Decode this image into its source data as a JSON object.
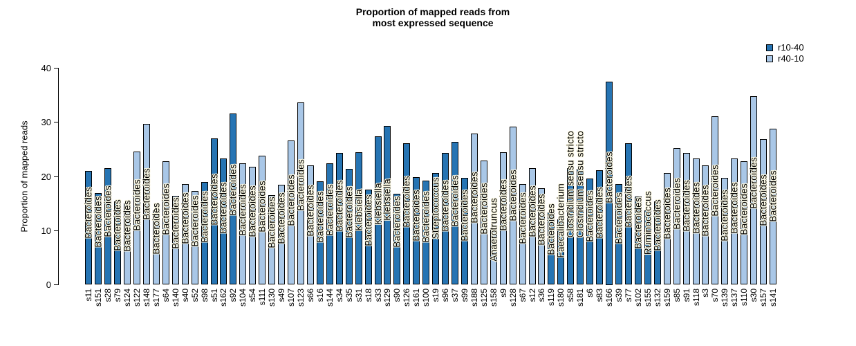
{
  "title": {
    "line1": "Proportion of mapped reads from",
    "line2": "most expressed sequence"
  },
  "y_axis": {
    "label": "Proportion of mapped reads",
    "ticks": [
      0,
      10,
      20,
      30,
      40
    ],
    "min": 0,
    "max": 40
  },
  "legend": [
    {
      "label": "r10-40",
      "color": "#2674B3"
    },
    {
      "label": "r40-10",
      "color": "#A9C7E7"
    }
  ],
  "colors": {
    "dark_series": "#2674B3",
    "light_series": "#A9C7E7",
    "bar_border": "#000000",
    "label_halo": "#fcf9e4",
    "background": "#ffffff"
  },
  "chart_data": {
    "type": "bar",
    "title": "Proportion of mapped reads from most expressed sequence",
    "xlabel": "",
    "ylabel": "Proportion of mapped reads",
    "ylim": [
      0,
      40
    ],
    "grid": false,
    "legend_position": "top-right",
    "series_legend": [
      "r10-40",
      "r40-10"
    ],
    "bars": [
      {
        "sample": "s11",
        "group": "r10-40",
        "genus": "Bacteroides",
        "value": 21.0
      },
      {
        "sample": "s151",
        "group": "r10-40",
        "genus": "Bacteroides",
        "value": 16.9
      },
      {
        "sample": "s28",
        "group": "r10-40",
        "genus": "Bacteroides",
        "value": 21.6
      },
      {
        "sample": "s79",
        "group": "r10-40",
        "genus": "Bacteroides",
        "value": 15.4
      },
      {
        "sample": "s124",
        "group": "r40-10",
        "genus": "Bacteroides",
        "value": 15.0
      },
      {
        "sample": "s122",
        "group": "r40-10",
        "genus": "Bacteroides",
        "value": 24.6
      },
      {
        "sample": "s148",
        "group": "r40-10",
        "genus": "Bacteroides",
        "value": 29.7
      },
      {
        "sample": "s177",
        "group": "r40-10",
        "genus": "Bacteroides",
        "value": 13.8
      },
      {
        "sample": "s64",
        "group": "r40-10",
        "genus": "Bacteroides",
        "value": 22.8
      },
      {
        "sample": "s140",
        "group": "r40-10",
        "genus": "Bacteroides",
        "value": 16.4
      },
      {
        "sample": "s40",
        "group": "r40-10",
        "genus": "Bacteroides",
        "value": 18.6
      },
      {
        "sample": "s52",
        "group": "r40-10",
        "genus": "Bacteroides",
        "value": 17.3
      },
      {
        "sample": "s98",
        "group": "r10-40",
        "genus": "Bacteroides",
        "value": 19.0
      },
      {
        "sample": "s51",
        "group": "r10-40",
        "genus": "Bacteroides",
        "value": 27.1
      },
      {
        "sample": "s162",
        "group": "r10-40",
        "genus": "Bacteroides",
        "value": 23.3
      },
      {
        "sample": "s92",
        "group": "r10-40",
        "genus": "Bacteroides",
        "value": 31.7
      },
      {
        "sample": "s104",
        "group": "r40-10",
        "genus": "Bacteroides",
        "value": 22.4
      },
      {
        "sample": "s54",
        "group": "r40-10",
        "genus": "Bacteroides",
        "value": 21.8
      },
      {
        "sample": "s111",
        "group": "r40-10",
        "genus": "Bacteroides",
        "value": 23.8
      },
      {
        "sample": "s130",
        "group": "r40-10",
        "genus": "Bacteroides",
        "value": 16.6
      },
      {
        "sample": "s49",
        "group": "r40-10",
        "genus": "Bacteroides",
        "value": 18.5
      },
      {
        "sample": "s107",
        "group": "r40-10",
        "genus": "Bacteroides",
        "value": 26.7
      },
      {
        "sample": "s123",
        "group": "r40-10",
        "genus": "Bacteroides",
        "value": 33.7
      },
      {
        "sample": "s66",
        "group": "r40-10",
        "genus": "Bacteroides",
        "value": 22.0
      },
      {
        "sample": "s16",
        "group": "r10-40",
        "genus": "Bacteroides",
        "value": 19.1
      },
      {
        "sample": "s144",
        "group": "r10-40",
        "genus": "Bacteroides",
        "value": 22.4
      },
      {
        "sample": "s34",
        "group": "r10-40",
        "genus": "Bacteroides",
        "value": 24.4
      },
      {
        "sample": "s35",
        "group": "r10-40",
        "genus": "Bacteroides",
        "value": 21.4
      },
      {
        "sample": "s31",
        "group": "r10-40",
        "genus": "Klebsiella",
        "value": 24.5
      },
      {
        "sample": "s18",
        "group": "r10-40",
        "genus": "Bacteroides",
        "value": 17.6
      },
      {
        "sample": "s33",
        "group": "r10-40",
        "genus": "Klebsiella",
        "value": 27.4
      },
      {
        "sample": "s129",
        "group": "r10-40",
        "genus": "Klebsiella",
        "value": 29.4
      },
      {
        "sample": "s90",
        "group": "r10-40",
        "genus": "Bacteroides",
        "value": 16.8
      },
      {
        "sample": "s126",
        "group": "r10-40",
        "genus": "Bacteroides",
        "value": 26.1
      },
      {
        "sample": "s161",
        "group": "r10-40",
        "genus": "Bacteroides",
        "value": 19.9
      },
      {
        "sample": "s100",
        "group": "r10-40",
        "genus": "Bacteroides",
        "value": 19.2
      },
      {
        "sample": "s19",
        "group": "r10-40",
        "genus": "Streptococcus",
        "value": 20.7
      },
      {
        "sample": "s96",
        "group": "r10-40",
        "genus": "Bacteroides",
        "value": 24.4
      },
      {
        "sample": "s37",
        "group": "r10-40",
        "genus": "Bacteroides",
        "value": 26.4
      },
      {
        "sample": "s99",
        "group": "r10-40",
        "genus": "Bacteroides",
        "value": 19.7
      },
      {
        "sample": "s188",
        "group": "r40-10",
        "genus": "Bacteroides",
        "value": 28.0
      },
      {
        "sample": "s125",
        "group": "r40-10",
        "genus": "Bacteroides",
        "value": 22.9
      },
      {
        "sample": "s158",
        "group": "r40-10",
        "genus": "Anaerotruncus",
        "value": 10.6
      },
      {
        "sample": "s9",
        "group": "r40-10",
        "genus": "Bacteroides",
        "value": 24.5
      },
      {
        "sample": "s128",
        "group": "r40-10",
        "genus": "Bacteroides",
        "value": 29.2
      },
      {
        "sample": "s67",
        "group": "r40-10",
        "genus": "Bacteroides",
        "value": 18.6
      },
      {
        "sample": "s12",
        "group": "r40-10",
        "genus": "Bacteroides",
        "value": 21.6
      },
      {
        "sample": "s36",
        "group": "r40-10",
        "genus": "Bacteroides",
        "value": 17.8
      },
      {
        "sample": "s119",
        "group": "r10-40",
        "genus": "Bacteroides",
        "value": 13.3
      },
      {
        "sample": "s180",
        "group": "r10-40",
        "genus": "Faecalibacterium",
        "value": 12.1
      },
      {
        "sample": "s58",
        "group": "r10-40",
        "genus": "Clostridium sensu stricto",
        "value": 21.5
      },
      {
        "sample": "s181",
        "group": "r10-40",
        "genus": "Clostridium sensu stricto",
        "value": 21.4
      },
      {
        "sample": "s6",
        "group": "r10-40",
        "genus": "Bacteroides",
        "value": 19.6
      },
      {
        "sample": "s83",
        "group": "r10-40",
        "genus": "Bacteroides",
        "value": 21.1
      },
      {
        "sample": "s166",
        "group": "r10-40",
        "genus": "Bacteroides",
        "value": 37.5
      },
      {
        "sample": "s39",
        "group": "r10-40",
        "genus": "Bacteroides",
        "value": 18.6
      },
      {
        "sample": "s77",
        "group": "r10-40",
        "genus": "Bacteroides",
        "value": 26.1
      },
      {
        "sample": "s102",
        "group": "r10-40",
        "genus": "Bacteroides",
        "value": 16.3
      },
      {
        "sample": "s155",
        "group": "r10-40",
        "genus": "Ruminococcus",
        "value": 13.7
      },
      {
        "sample": "s132",
        "group": "r10-40",
        "genus": "Bacteroides",
        "value": 15.4
      },
      {
        "sample": "s159",
        "group": "r40-10",
        "genus": "Bacteroides",
        "value": 20.7
      },
      {
        "sample": "s85",
        "group": "r40-10",
        "genus": "Bacteroides",
        "value": 25.3
      },
      {
        "sample": "s91",
        "group": "r40-10",
        "genus": "Bacteroides",
        "value": 24.4
      },
      {
        "sample": "s118",
        "group": "r40-10",
        "genus": "Bacteroides",
        "value": 23.4
      },
      {
        "sample": "s3",
        "group": "r40-10",
        "genus": "Bacteroides",
        "value": 22.1
      },
      {
        "sample": "s70",
        "group": "r40-10",
        "genus": "Bacteroides",
        "value": 31.2
      },
      {
        "sample": "s139",
        "group": "r40-10",
        "genus": "Bacteroides",
        "value": 19.7
      },
      {
        "sample": "s137",
        "group": "r40-10",
        "genus": "Bacteroides",
        "value": 23.3
      },
      {
        "sample": "s110",
        "group": "r40-10",
        "genus": "Bacteroides",
        "value": 22.8
      },
      {
        "sample": "s30",
        "group": "r40-10",
        "genus": "Bacteroides",
        "value": 34.8
      },
      {
        "sample": "s157",
        "group": "r40-10",
        "genus": "Bacteroides",
        "value": 26.9
      },
      {
        "sample": "s141",
        "group": "r40-10",
        "genus": "Bacteroides",
        "value": 28.9
      }
    ]
  }
}
